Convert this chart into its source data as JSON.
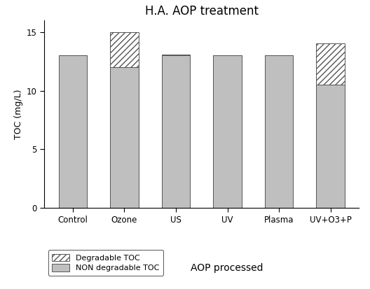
{
  "categories": [
    "Control",
    "Ozone",
    "US",
    "UV",
    "Plasma",
    "UV+O3+P"
  ],
  "non_degradable": [
    13.0,
    12.0,
    13.0,
    13.0,
    13.0,
    10.5
  ],
  "degradable": [
    0.0,
    3.0,
    0.1,
    0.0,
    0.0,
    3.5
  ],
  "bar_color_non": "#bfbfbf",
  "bar_color_deg": "#ffffff",
  "hatch_deg": "////",
  "title": "H.A. AOP treatment",
  "ylabel": "TOC (mg/L)",
  "xlabel": "AOP processed",
  "ylim": [
    0,
    16
  ],
  "yticks": [
    0,
    5,
    10,
    15
  ],
  "legend_labels": [
    "Degradable TOC",
    "NON degradable TOC"
  ],
  "title_fontsize": 12,
  "label_fontsize": 9,
  "tick_fontsize": 8.5,
  "legend_fontsize": 8,
  "bar_width": 0.55,
  "bar_edgecolor": "#555555",
  "background_color": "#ffffff"
}
